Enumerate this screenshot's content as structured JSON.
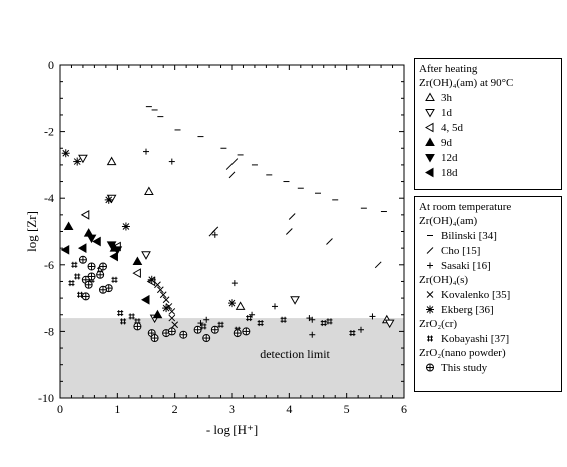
{
  "chart_data": {
    "type": "scatter",
    "xlabel": "- log [H⁺]",
    "ylabel": "log [Zr]",
    "xlim": [
      0,
      6
    ],
    "ylim": [
      -10,
      0
    ],
    "xticks": [
      "0",
      "1",
      "2",
      "3",
      "4",
      "5",
      "6"
    ],
    "yticks": [
      "0",
      "-2",
      "-4",
      "-6",
      "-8",
      "-10"
    ],
    "detection_limit": -7.6,
    "detection_label": "detection limit",
    "grid": false,
    "legend_placement": "right, outside",
    "legend_groups": [
      {
        "title_lines": [
          "After heating",
          "Zr(OH)₄(am) at 90°C"
        ],
        "series_keys": [
          "3h",
          "1d",
          "45d",
          "9d",
          "12d",
          "18d"
        ]
      },
      {
        "title_lines": [
          "At room temperature",
          "Zr(OH)₄(am)"
        ],
        "series_keys": [
          "bilinski",
          "cho",
          "sasaki"
        ]
      },
      {
        "title_lines": [
          "Zr(OH)₄(s)"
        ],
        "series_keys": [
          "kovalenko",
          "ekberg"
        ]
      },
      {
        "title_lines": [
          "ZrO₂(cr)"
        ],
        "series_keys": [
          "kobayashi"
        ]
      },
      {
        "title_lines": [
          "ZrO₂(nano powder)"
        ],
        "series_keys": [
          "thisstudy"
        ]
      }
    ],
    "series": [
      {
        "key": "3h",
        "name": "3h",
        "marker": "triangle-up-open",
        "points": [
          [
            0.9,
            -2.9
          ],
          [
            1.55,
            -3.8
          ],
          [
            3.15,
            -7.25
          ],
          [
            5.7,
            -7.65
          ]
        ]
      },
      {
        "key": "1d",
        "name": "1d",
        "marker": "triangle-down-open",
        "points": [
          [
            0.4,
            -2.8
          ],
          [
            0.9,
            -4.0
          ],
          [
            1.5,
            -5.7
          ],
          [
            1.65,
            -7.6
          ],
          [
            4.1,
            -7.05
          ],
          [
            5.75,
            -7.75
          ]
        ]
      },
      {
        "key": "45d",
        "name": "4, 5d",
        "marker": "triangle-left-open",
        "points": [
          [
            0.45,
            -4.5
          ],
          [
            1.0,
            -5.45
          ],
          [
            1.35,
            -6.25
          ],
          [
            1.6,
            -6.5
          ]
        ]
      },
      {
        "key": "9d",
        "name": "9d",
        "marker": "triangle-up-filled",
        "points": [
          [
            0.15,
            -4.85
          ],
          [
            0.5,
            -5.05
          ],
          [
            0.95,
            -5.5
          ],
          [
            1.35,
            -5.9
          ],
          [
            1.7,
            -7.5
          ]
        ]
      },
      {
        "key": "12d",
        "name": "12d",
        "marker": "triangle-down-filled",
        "points": [
          [
            0.55,
            -5.2
          ],
          [
            0.9,
            -5.4
          ],
          [
            1.0,
            -5.55
          ]
        ]
      },
      {
        "key": "18d",
        "name": "18d",
        "marker": "triangle-left-filled",
        "points": [
          [
            0.1,
            -5.55
          ],
          [
            0.4,
            -5.5
          ],
          [
            0.65,
            -5.3
          ],
          [
            0.95,
            -5.75
          ],
          [
            1.5,
            -7.05
          ]
        ]
      },
      {
        "key": "bilinski",
        "name": "Bilinski [34]",
        "marker": "dash",
        "points": [
          [
            1.55,
            -1.25
          ],
          [
            1.65,
            -1.35
          ],
          [
            1.75,
            -1.55
          ],
          [
            2.05,
            -1.95
          ],
          [
            2.45,
            -2.15
          ],
          [
            2.85,
            -2.5
          ],
          [
            3.15,
            -2.7
          ],
          [
            3.4,
            -3.0
          ],
          [
            3.65,
            -3.3
          ],
          [
            3.95,
            -3.5
          ],
          [
            4.2,
            -3.7
          ],
          [
            4.5,
            -3.85
          ],
          [
            4.8,
            -4.05
          ],
          [
            5.3,
            -4.3
          ],
          [
            5.65,
            -4.4
          ]
        ]
      },
      {
        "key": "cho",
        "name": "Cho [15]",
        "marker": "slash",
        "points": [
          [
            2.95,
            -3.05
          ],
          [
            3.05,
            -2.9
          ],
          [
            3.0,
            -3.3
          ],
          [
            2.65,
            -5.05
          ],
          [
            2.7,
            -4.95
          ],
          [
            4.0,
            -5.0
          ],
          [
            4.05,
            -4.55
          ],
          [
            4.7,
            -5.3
          ],
          [
            5.55,
            -6.0
          ]
        ]
      },
      {
        "key": "sasaki",
        "name": "Sasaki [16]",
        "marker": "plus",
        "points": [
          [
            1.5,
            -2.6
          ],
          [
            1.95,
            -2.9
          ],
          [
            2.7,
            -5.1
          ],
          [
            3.05,
            -6.55
          ],
          [
            3.75,
            -7.25
          ],
          [
            4.35,
            -7.6
          ],
          [
            4.4,
            -7.65
          ],
          [
            4.4,
            -8.1
          ],
          [
            5.45,
            -7.55
          ],
          [
            5.25,
            -7.95
          ],
          [
            2.45,
            -7.75
          ],
          [
            2.55,
            -7.65
          ],
          [
            3.35,
            -7.5
          ]
        ]
      },
      {
        "key": "kovalenko",
        "name": "Kovalenko [35]",
        "marker": "cross",
        "points": [
          [
            1.7,
            -6.6
          ],
          [
            1.75,
            -6.75
          ],
          [
            1.8,
            -6.9
          ],
          [
            1.85,
            -7.05
          ],
          [
            1.9,
            -7.25
          ],
          [
            1.95,
            -7.4
          ],
          [
            1.95,
            -7.6
          ],
          [
            2.0,
            -7.8
          ]
        ]
      },
      {
        "key": "ekberg",
        "name": "Ekberg [36]",
        "marker": "asterisk",
        "points": [
          [
            0.1,
            -2.65
          ],
          [
            0.3,
            -2.9
          ],
          [
            0.85,
            -4.05
          ],
          [
            1.15,
            -4.85
          ],
          [
            1.6,
            -6.45
          ],
          [
            1.85,
            -7.3
          ],
          [
            3.0,
            -7.15
          ]
        ]
      },
      {
        "key": "kobayashi",
        "name": "Kobayashi [37]",
        "marker": "hash",
        "points": [
          [
            0.25,
            -6.0
          ],
          [
            0.3,
            -6.35
          ],
          [
            0.2,
            -6.55
          ],
          [
            0.35,
            -6.9
          ],
          [
            0.55,
            -6.45
          ],
          [
            0.7,
            -6.15
          ],
          [
            0.95,
            -6.45
          ],
          [
            1.05,
            -7.45
          ],
          [
            1.1,
            -7.7
          ],
          [
            1.25,
            -7.55
          ],
          [
            1.35,
            -7.7
          ],
          [
            2.5,
            -7.85
          ],
          [
            2.8,
            -7.8
          ],
          [
            3.1,
            -7.95
          ],
          [
            3.3,
            -7.6
          ],
          [
            3.5,
            -7.75
          ],
          [
            3.9,
            -7.65
          ],
          [
            4.6,
            -7.75
          ],
          [
            4.7,
            -7.7
          ],
          [
            5.1,
            -8.05
          ]
        ]
      },
      {
        "key": "thisstudy",
        "name": "This study",
        "marker": "circle-plus",
        "points": [
          [
            0.4,
            -5.85
          ],
          [
            0.55,
            -6.05
          ],
          [
            0.75,
            -6.05
          ],
          [
            0.55,
            -6.35
          ],
          [
            0.7,
            -6.3
          ],
          [
            0.85,
            -6.7
          ],
          [
            0.75,
            -6.75
          ],
          [
            0.45,
            -6.45
          ],
          [
            0.5,
            -6.6
          ],
          [
            0.45,
            -6.95
          ],
          [
            1.35,
            -7.85
          ],
          [
            1.6,
            -8.05
          ],
          [
            1.65,
            -8.2
          ],
          [
            1.85,
            -8.05
          ],
          [
            1.95,
            -8.0
          ],
          [
            2.15,
            -8.1
          ],
          [
            2.4,
            -7.95
          ],
          [
            2.55,
            -8.2
          ],
          [
            2.7,
            -7.95
          ],
          [
            3.1,
            -8.05
          ],
          [
            3.25,
            -8.0
          ]
        ]
      }
    ]
  }
}
